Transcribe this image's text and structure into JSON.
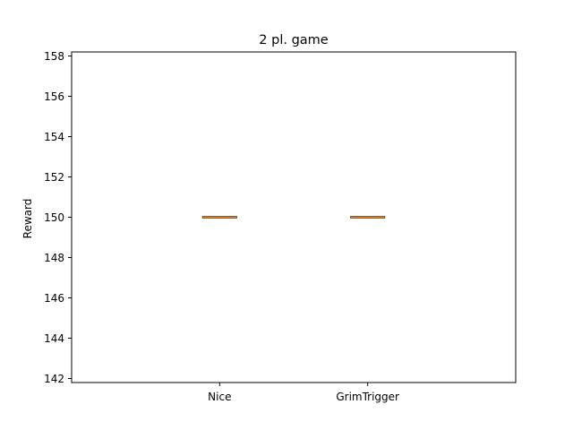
{
  "chart_data": {
    "type": "box",
    "title": "2 pl. game",
    "xlabel": "",
    "ylabel": "Reward",
    "categories": [
      "Nice",
      "GrimTrigger"
    ],
    "series": [
      {
        "q1": 150,
        "median": 150,
        "q3": 150,
        "whisker_low": 150,
        "whisker_high": 150
      },
      {
        "q1": 150,
        "median": 150,
        "q3": 150,
        "whisker_low": 150,
        "whisker_high": 150
      }
    ],
    "ylim": [
      141.8,
      158.2
    ],
    "yticks": [
      142,
      144,
      146,
      148,
      150,
      152,
      154,
      156,
      158
    ],
    "grid": false,
    "colors": {
      "box": "#000000",
      "median": "#ff7f0e"
    }
  }
}
